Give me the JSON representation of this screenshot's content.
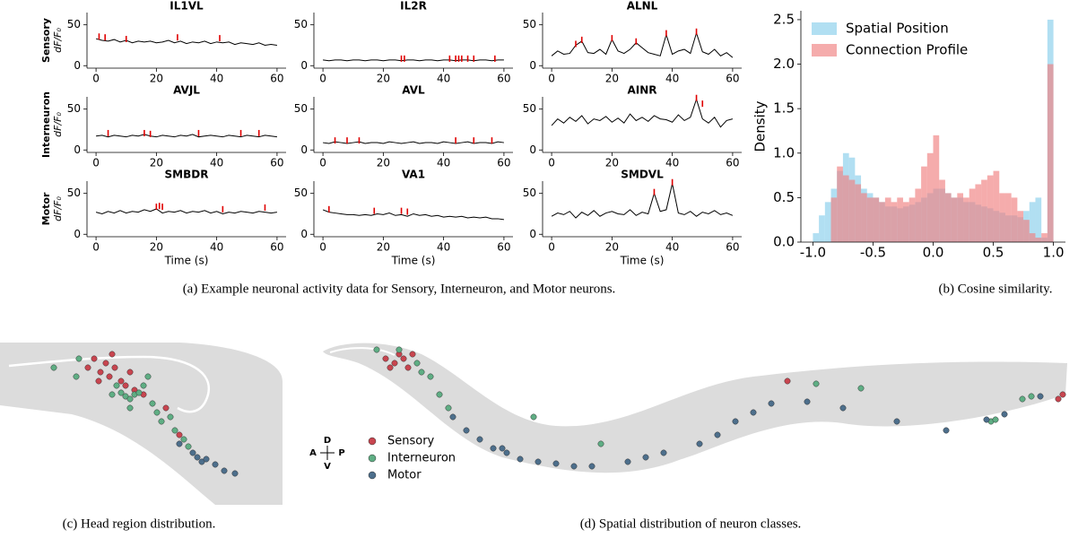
{
  "captions": [
    "(a) Example neuronal activity data for Sensory, Interneuron, and Motor neurons.",
    "(b) Cosine similarity.",
    "(c) Head region distribution.",
    "(d) Spatial distribution of neuron classes."
  ],
  "chart_data": [
    {
      "type": "line",
      "title": "IL1VL",
      "row_label": "Sensory",
      "ylabel": "dF/F₀",
      "xlim": [
        -3,
        63
      ],
      "ylim": [
        -3,
        65
      ],
      "xticks": [
        0,
        20,
        40,
        60
      ],
      "yticks": [
        0,
        50
      ],
      "color": "#000000",
      "x": [
        0,
        2,
        4,
        6,
        8,
        10,
        12,
        14,
        16,
        18,
        20,
        22,
        24,
        26,
        28,
        30,
        32,
        34,
        36,
        38,
        40,
        42,
        44,
        46,
        48,
        50,
        52,
        54,
        56,
        58,
        60
      ],
      "values": [
        33,
        31,
        30,
        32,
        29,
        31,
        28,
        30,
        29,
        30,
        28,
        29,
        31,
        28,
        30,
        27,
        29,
        28,
        30,
        27,
        29,
        28,
        29,
        26,
        28,
        27,
        26,
        28,
        25,
        26,
        25
      ],
      "events": {
        "color": "#e00000",
        "x": [
          1,
          3,
          10,
          27,
          41
        ],
        "values": [
          34,
          33,
          31,
          33,
          32
        ]
      }
    },
    {
      "type": "line",
      "title": "IL2R",
      "xlim": [
        -3,
        63
      ],
      "ylim": [
        -3,
        65
      ],
      "xticks": [
        0,
        20,
        40,
        60
      ],
      "yticks": [
        0,
        50
      ],
      "color": "#000000",
      "x": [
        0,
        2,
        4,
        6,
        8,
        10,
        12,
        14,
        16,
        18,
        20,
        22,
        24,
        26,
        28,
        30,
        32,
        34,
        36,
        38,
        40,
        42,
        44,
        46,
        48,
        50,
        52,
        54,
        56,
        58,
        60
      ],
      "values": [
        7,
        6,
        7,
        7,
        6,
        7,
        7,
        6,
        7,
        7,
        6,
        7,
        7,
        6,
        7,
        7,
        6,
        7,
        7,
        6,
        7,
        7,
        6,
        7,
        7,
        6,
        7,
        7,
        6,
        7,
        7
      ],
      "events": {
        "color": "#e00000",
        "x": [
          26,
          27,
          42,
          44,
          45,
          46,
          48,
          50,
          57
        ],
        "values": [
          7,
          7,
          7,
          7,
          7,
          7,
          7,
          7,
          7
        ]
      }
    },
    {
      "type": "line",
      "title": "ALNL",
      "xlim": [
        -3,
        63
      ],
      "ylim": [
        -3,
        65
      ],
      "xticks": [
        0,
        20,
        40,
        60
      ],
      "yticks": [
        0,
        50
      ],
      "color": "#000000",
      "x": [
        0,
        2,
        4,
        6,
        8,
        10,
        12,
        14,
        16,
        18,
        20,
        22,
        24,
        26,
        28,
        30,
        32,
        34,
        36,
        38,
        40,
        42,
        44,
        46,
        48,
        50,
        52,
        54,
        56,
        58,
        60
      ],
      "values": [
        12,
        18,
        14,
        15,
        25,
        30,
        16,
        15,
        20,
        14,
        32,
        18,
        15,
        20,
        28,
        22,
        16,
        14,
        12,
        38,
        14,
        18,
        20,
        15,
        40,
        17,
        14,
        20,
        12,
        16,
        10
      ],
      "events": {
        "color": "#e00000",
        "x": [
          8,
          10,
          20,
          28,
          38,
          48
        ],
        "values": [
          25,
          30,
          32,
          28,
          38,
          40
        ]
      }
    },
    {
      "type": "line",
      "title": "AVJL",
      "row_label": "Interneuron",
      "ylabel": "dF/F₀",
      "xlim": [
        -3,
        63
      ],
      "ylim": [
        -3,
        65
      ],
      "xticks": [
        0,
        20,
        40,
        60
      ],
      "yticks": [
        0,
        50
      ],
      "color": "#000000",
      "x": [
        0,
        2,
        4,
        6,
        8,
        10,
        12,
        14,
        16,
        18,
        20,
        22,
        24,
        26,
        28,
        30,
        32,
        34,
        36,
        38,
        40,
        42,
        44,
        46,
        48,
        50,
        52,
        54,
        56,
        58,
        60
      ],
      "values": [
        17,
        18,
        16,
        18,
        17,
        16,
        18,
        17,
        19,
        17,
        16,
        18,
        17,
        16,
        18,
        17,
        19,
        16,
        17,
        18,
        17,
        16,
        18,
        17,
        16,
        18,
        17,
        16,
        18,
        17,
        16
      ],
      "events": {
        "color": "#e00000",
        "x": [
          4,
          16,
          18,
          34,
          48,
          54
        ],
        "values": [
          19,
          19,
          18,
          19,
          19,
          19
        ]
      }
    },
    {
      "type": "line",
      "title": "AVL",
      "xlim": [
        -3,
        63
      ],
      "ylim": [
        -3,
        65
      ],
      "xticks": [
        0,
        20,
        40,
        60
      ],
      "yticks": [
        0,
        50
      ],
      "color": "#000000",
      "x": [
        0,
        2,
        4,
        6,
        8,
        10,
        12,
        14,
        16,
        18,
        20,
        22,
        24,
        26,
        28,
        30,
        32,
        34,
        36,
        38,
        40,
        42,
        44,
        46,
        48,
        50,
        52,
        54,
        56,
        58,
        60
      ],
      "values": [
        9,
        8,
        10,
        9,
        8,
        9,
        10,
        8,
        9,
        9,
        8,
        10,
        9,
        8,
        9,
        10,
        8,
        9,
        9,
        8,
        10,
        9,
        8,
        9,
        10,
        8,
        9,
        9,
        8,
        10,
        9
      ],
      "events": {
        "color": "#e00000",
        "x": [
          4,
          8,
          12,
          44,
          50,
          56
        ],
        "values": [
          10,
          10,
          10,
          10,
          10,
          10
        ]
      }
    },
    {
      "type": "line",
      "title": "AINR",
      "xlim": [
        -3,
        63
      ],
      "ylim": [
        -3,
        65
      ],
      "xticks": [
        0,
        20,
        40,
        60
      ],
      "yticks": [
        0,
        50
      ],
      "color": "#000000",
      "x": [
        0,
        2,
        4,
        6,
        8,
        10,
        12,
        14,
        16,
        18,
        20,
        22,
        24,
        26,
        28,
        30,
        32,
        34,
        36,
        38,
        40,
        42,
        44,
        46,
        48,
        50,
        52,
        54,
        56,
        58,
        60
      ],
      "values": [
        30,
        38,
        33,
        40,
        35,
        42,
        32,
        38,
        36,
        41,
        34,
        39,
        33,
        44,
        36,
        40,
        35,
        42,
        38,
        37,
        34,
        43,
        36,
        40,
        62,
        38,
        33,
        40,
        28,
        36,
        38
      ],
      "events": {
        "color": "#e00000",
        "x": [
          48,
          50
        ],
        "values": [
          62,
          55
        ]
      }
    },
    {
      "type": "line",
      "title": "SMBDR",
      "row_label": "Motor",
      "ylabel": "dF/F₀",
      "xlabel": "Time (s)",
      "xlim": [
        -3,
        63
      ],
      "ylim": [
        -3,
        65
      ],
      "xticks": [
        0,
        20,
        40,
        60
      ],
      "yticks": [
        0,
        50
      ],
      "color": "#000000",
      "x": [
        0,
        2,
        4,
        6,
        8,
        10,
        12,
        14,
        16,
        18,
        20,
        22,
        24,
        26,
        28,
        30,
        32,
        34,
        36,
        38,
        40,
        42,
        44,
        46,
        48,
        50,
        52,
        54,
        56,
        58,
        60
      ],
      "values": [
        27,
        25,
        28,
        26,
        29,
        26,
        28,
        27,
        30,
        28,
        31,
        26,
        28,
        27,
        29,
        26,
        28,
        27,
        29,
        26,
        28,
        25,
        27,
        26,
        28,
        27,
        26,
        28,
        27,
        26,
        27
      ],
      "events": {
        "color": "#e00000",
        "x": [
          20,
          21,
          22,
          42,
          56
        ],
        "values": [
          32,
          33,
          32,
          29,
          31
        ]
      }
    },
    {
      "type": "line",
      "title": "VA1",
      "xlabel": "Time (s)",
      "xlim": [
        -3,
        63
      ],
      "ylim": [
        -3,
        65
      ],
      "xticks": [
        0,
        20,
        40,
        60
      ],
      "yticks": [
        0,
        50
      ],
      "color": "#000000",
      "x": [
        0,
        2,
        4,
        6,
        8,
        10,
        12,
        14,
        16,
        18,
        20,
        22,
        24,
        26,
        28,
        30,
        32,
        34,
        36,
        38,
        40,
        42,
        44,
        46,
        48,
        50,
        52,
        54,
        56,
        58,
        60
      ],
      "values": [
        30,
        27,
        26,
        25,
        24,
        24,
        23,
        24,
        23,
        25,
        24,
        26,
        23,
        24,
        22,
        25,
        23,
        24,
        22,
        23,
        21,
        22,
        21,
        22,
        20,
        21,
        20,
        21,
        19,
        19,
        18
      ],
      "events": {
        "color": "#e00000",
        "x": [
          2,
          17,
          26,
          28
        ],
        "values": [
          29,
          27,
          27,
          26
        ]
      }
    },
    {
      "type": "line",
      "title": "SMDVL",
      "xlabel": "Time (s)",
      "xlim": [
        -3,
        63
      ],
      "ylim": [
        -3,
        65
      ],
      "xticks": [
        0,
        20,
        40,
        60
      ],
      "yticks": [
        0,
        50
      ],
      "color": "#000000",
      "x": [
        0,
        2,
        4,
        6,
        8,
        10,
        12,
        14,
        16,
        18,
        20,
        22,
        24,
        26,
        28,
        30,
        32,
        34,
        36,
        38,
        40,
        42,
        44,
        46,
        48,
        50,
        52,
        54,
        56,
        58,
        60
      ],
      "values": [
        22,
        26,
        24,
        28,
        20,
        27,
        23,
        29,
        22,
        26,
        28,
        25,
        24,
        30,
        23,
        27,
        25,
        50,
        28,
        30,
        62,
        26,
        24,
        28,
        22,
        27,
        25,
        29,
        24,
        26,
        23
      ],
      "events": {
        "color": "#e00000",
        "x": [
          34,
          40
        ],
        "values": [
          50,
          62
        ]
      }
    },
    {
      "type": "histogram",
      "ylabel": "Density",
      "legend": "upper left",
      "xlim": [
        -1.1,
        1.1
      ],
      "ylim": [
        0,
        2.6
      ],
      "xticks": [
        {
          "value": -1,
          "label": "-1.0"
        },
        -0.5,
        {
          "value": 0,
          "label": "0.0"
        },
        0.5,
        {
          "value": 1,
          "label": "1.0"
        }
      ],
      "yticks": [
        {
          "value": 0,
          "label": "0.0"
        },
        0.5,
        {
          "value": 1,
          "label": "1.0"
        },
        1.5,
        {
          "value": 2,
          "label": "2.0"
        },
        2.5
      ],
      "bins": [
        -1,
        -0.95,
        -0.9,
        -0.85,
        -0.8,
        -0.75,
        -0.7,
        -0.65,
        -0.6,
        -0.55,
        -0.5,
        -0.45,
        -0.4,
        -0.35,
        -0.3,
        -0.25,
        -0.2,
        -0.15,
        -0.1,
        -0.05,
        0,
        0.05,
        0.1,
        0.15,
        0.2,
        0.25,
        0.3,
        0.35,
        0.4,
        0.45,
        0.5,
        0.55,
        0.6,
        0.65,
        0.7,
        0.75,
        0.8,
        0.85,
        0.9,
        0.95,
        1
      ],
      "series": [
        {
          "name": "Spatial Position",
          "color": "#87ceeb",
          "values": [
            0.1,
            0.3,
            0.45,
            0.6,
            0.8,
            1.0,
            0.95,
            0.75,
            0.6,
            0.55,
            0.5,
            0.45,
            0.4,
            0.4,
            0.38,
            0.4,
            0.42,
            0.45,
            0.5,
            0.55,
            0.6,
            0.6,
            0.55,
            0.5,
            0.5,
            0.45,
            0.45,
            0.42,
            0.4,
            0.38,
            0.35,
            0.33,
            0.3,
            0.3,
            0.28,
            0.35,
            0.45,
            0.5,
            0.05,
            2.5
          ]
        },
        {
          "name": "Connection Profile",
          "color": "#f08080",
          "values": [
            0,
            0,
            0,
            0.5,
            0.85,
            0.75,
            0.7,
            0.65,
            0.55,
            0.5,
            0.5,
            0.45,
            0.5,
            0.45,
            0.5,
            0.45,
            0.5,
            0.6,
            0.85,
            1.0,
            1.2,
            0.7,
            0.55,
            0.5,
            0.55,
            0.5,
            0.6,
            0.65,
            0.7,
            0.75,
            0.8,
            0.55,
            0.55,
            0.5,
            0.35,
            0.25,
            0.1,
            0.05,
            0.1,
            2.0
          ]
        }
      ]
    },
    {
      "type": "scatter",
      "xlim": [
        0,
        315
      ],
      "ylim": [
        0,
        183
      ],
      "series": [
        {
          "color": "#c8454f",
          "x": [
            98,
            105,
            112,
            118,
            122,
            128,
            135,
            140,
            145,
            150,
            110,
            125,
            160,
            200,
            185
          ],
          "values": [
            153,
            163,
            148,
            158,
            143,
            153,
            138,
            133,
            148,
            128,
            138,
            168,
            123,
            78,
            108
          ]
        },
        {
          "color": "#5fae84",
          "x": [
            60,
            88,
            130,
            135,
            140,
            145,
            150,
            155,
            160,
            170,
            175,
            180,
            190,
            195,
            205,
            165,
            125,
            145,
            210,
            85
          ],
          "values": [
            153,
            163,
            133,
            125,
            121,
            118,
            123,
            125,
            133,
            113,
            103,
            93,
            98,
            83,
            73,
            143,
            123,
            108,
            65,
            143
          ]
        },
        {
          "color": "#4d6f8c",
          "x": [
            215,
            220,
            225,
            240,
            250,
            262,
            200,
            230
          ],
          "values": [
            58,
            53,
            48,
            45,
            38,
            35,
            68,
            51
          ]
        }
      ]
    },
    {
      "type": "scatter",
      "xlim": [
        0,
        857
      ],
      "ylim": [
        0,
        195
      ],
      "legend": "lower left",
      "compass": {
        "up": "D",
        "down": "V",
        "left": "A",
        "right": "P"
      },
      "series": [
        {
          "name": "Sensory",
          "color": "#c8454f",
          "x": [
            85,
            95,
            100,
            90,
            105,
            110,
            115,
            533,
            840,
            835
          ],
          "values": [
            170,
            165,
            175,
            160,
            170,
            160,
            175,
            145,
            130,
            125
          ]
        },
        {
          "name": "Interneuron",
          "color": "#5fae84",
          "x": [
            75,
            100,
            120,
            125,
            135,
            145,
            155,
            760,
            765,
            795,
            805,
            565,
            615,
            325,
            250
          ],
          "values": [
            180,
            180,
            165,
            155,
            150,
            130,
            115,
            100,
            102,
            125,
            128,
            142,
            137,
            75,
            105
          ]
        },
        {
          "name": "Motor",
          "color": "#4d6f8c",
          "x": [
            160,
            175,
            190,
            205,
            220,
            235,
            255,
            275,
            295,
            315,
            355,
            395,
            435,
            455,
            475,
            495,
            515,
            555,
            595,
            655,
            710,
            755,
            815,
            775,
            375,
            215
          ],
          "values": [
            105,
            90,
            80,
            70,
            65,
            58,
            55,
            53,
            50,
            50,
            55,
            65,
            75,
            85,
            100,
            110,
            120,
            122,
            115,
            100,
            90,
            102,
            128,
            108,
            60,
            70
          ]
        }
      ]
    }
  ]
}
